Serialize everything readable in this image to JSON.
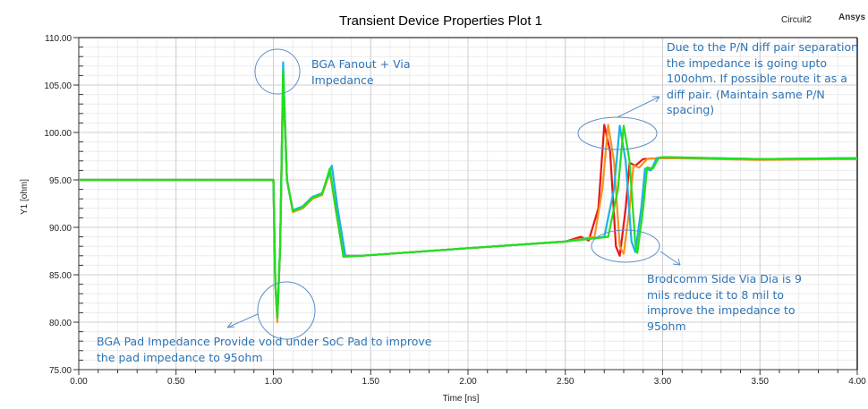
{
  "header": {
    "title": "Transient Device Properties Plot 1",
    "circuit": "Circuit2",
    "vendor": "Ansys"
  },
  "annotations": {
    "fanout": "BGA Fanout + Via\nImpedance",
    "diff_pair": "Due to the P/N diff pair separation\nthe impedance is going upto\n100ohm. If possible route it as a\ndiff pair. (Maintain same P/N\nspacing)",
    "pad": "BGA Pad Impedance Provide void under SoC Pad to improve\nthe pad impedance to 95ohm",
    "via": "Brodcomm Side Via Dia is 9\nmils reduce it to 8 mil to\nimprove the impedance to\n95ohm"
  },
  "chart_data": {
    "type": "line",
    "title": "Transient Device Properties Plot 1",
    "xlabel": "Time [ns]",
    "ylabel": "Y1 [ohm]",
    "xlim": [
      0,
      4
    ],
    "ylim": [
      75,
      110
    ],
    "x_ticks": [
      "0.00",
      "0.50",
      "1.00",
      "1.50",
      "2.00",
      "2.50",
      "3.00",
      "3.50",
      "4.00"
    ],
    "y_ticks": [
      "110.00",
      "105.00",
      "100.00",
      "95.00",
      "90.00",
      "85.00",
      "80.00",
      "75.00"
    ],
    "grid": true,
    "legend": "none",
    "series": [
      {
        "name": "trace-red",
        "color": "#e8141c",
        "points": [
          [
            0,
            95
          ],
          [
            1.0,
            95
          ],
          [
            1.01,
            84
          ],
          [
            1.02,
            80.5
          ],
          [
            1.035,
            88
          ],
          [
            1.05,
            105.5
          ],
          [
            1.07,
            95
          ],
          [
            1.1,
            91.7
          ],
          [
            1.15,
            92
          ],
          [
            1.2,
            93
          ],
          [
            1.25,
            93.5
          ],
          [
            1.29,
            96
          ],
          [
            1.32,
            92
          ],
          [
            1.36,
            87
          ],
          [
            1.45,
            87
          ],
          [
            2.0,
            87.8
          ],
          [
            2.5,
            88.5
          ],
          [
            2.58,
            89
          ],
          [
            2.62,
            88.6
          ],
          [
            2.67,
            92
          ],
          [
            2.7,
            100.8
          ],
          [
            2.73,
            98
          ],
          [
            2.76,
            88
          ],
          [
            2.78,
            87
          ],
          [
            2.81,
            92
          ],
          [
            2.83,
            96.8
          ],
          [
            2.86,
            96.5
          ],
          [
            2.9,
            97.2
          ],
          [
            3.0,
            97.3
          ],
          [
            3.5,
            97.2
          ],
          [
            4.0,
            97.2
          ]
        ]
      },
      {
        "name": "trace-orange",
        "color": "#f7941d",
        "points": [
          [
            0,
            95
          ],
          [
            1.0,
            95
          ],
          [
            1.01,
            84
          ],
          [
            1.02,
            80
          ],
          [
            1.035,
            88
          ],
          [
            1.05,
            106
          ],
          [
            1.07,
            95
          ],
          [
            1.1,
            91.6
          ],
          [
            1.15,
            92
          ],
          [
            1.2,
            93
          ],
          [
            1.25,
            93.4
          ],
          [
            1.29,
            95.8
          ],
          [
            1.32,
            92
          ],
          [
            1.36,
            87
          ],
          [
            1.45,
            87
          ],
          [
            2.0,
            87.8
          ],
          [
            2.5,
            88.5
          ],
          [
            2.65,
            89
          ],
          [
            2.69,
            94
          ],
          [
            2.72,
            100.8
          ],
          [
            2.75,
            97
          ],
          [
            2.78,
            88
          ],
          [
            2.8,
            87.2
          ],
          [
            2.83,
            92
          ],
          [
            2.85,
            96.5
          ],
          [
            2.88,
            96.3
          ],
          [
            2.92,
            97.2
          ],
          [
            3.0,
            97.3
          ],
          [
            3.5,
            97.1
          ],
          [
            4.0,
            97.2
          ]
        ]
      },
      {
        "name": "trace-cyan",
        "color": "#1ab2e8",
        "points": [
          [
            0,
            95
          ],
          [
            1.0,
            95
          ],
          [
            1.01,
            84
          ],
          [
            1.02,
            80.5
          ],
          [
            1.035,
            88
          ],
          [
            1.05,
            107.4
          ],
          [
            1.07,
            95
          ],
          [
            1.1,
            91.8
          ],
          [
            1.15,
            92.2
          ],
          [
            1.2,
            93.2
          ],
          [
            1.25,
            93.6
          ],
          [
            1.3,
            96.5
          ],
          [
            1.33,
            92
          ],
          [
            1.37,
            87
          ],
          [
            1.45,
            87
          ],
          [
            2.0,
            87.8
          ],
          [
            2.5,
            88.5
          ],
          [
            2.7,
            89
          ],
          [
            2.75,
            94
          ],
          [
            2.78,
            100.7
          ],
          [
            2.81,
            97
          ],
          [
            2.84,
            88.5
          ],
          [
            2.86,
            87.4
          ],
          [
            2.89,
            92
          ],
          [
            2.91,
            96.2
          ],
          [
            2.94,
            96
          ],
          [
            2.97,
            97.3
          ],
          [
            3.0,
            97.4
          ],
          [
            3.5,
            97.2
          ],
          [
            4.0,
            97.3
          ]
        ]
      },
      {
        "name": "trace-green",
        "color": "#22e01a",
        "points": [
          [
            0,
            95
          ],
          [
            1.0,
            95
          ],
          [
            1.01,
            84
          ],
          [
            1.02,
            80.5
          ],
          [
            1.035,
            88
          ],
          [
            1.05,
            106.5
          ],
          [
            1.07,
            95
          ],
          [
            1.1,
            91.7
          ],
          [
            1.15,
            92.1
          ],
          [
            1.2,
            93.1
          ],
          [
            1.25,
            93.5
          ],
          [
            1.29,
            96.2
          ],
          [
            1.32,
            92
          ],
          [
            1.36,
            86.9
          ],
          [
            1.45,
            87
          ],
          [
            2.0,
            87.8
          ],
          [
            2.5,
            88.5
          ],
          [
            2.72,
            89
          ],
          [
            2.77,
            94
          ],
          [
            2.8,
            100.7
          ],
          [
            2.83,
            97
          ],
          [
            2.86,
            88.2
          ],
          [
            2.87,
            87.3
          ],
          [
            2.9,
            92
          ],
          [
            2.92,
            96.3
          ],
          [
            2.95,
            96.2
          ],
          [
            2.98,
            97.3
          ],
          [
            3.0,
            97.4
          ],
          [
            3.5,
            97.2
          ],
          [
            4.0,
            97.3
          ]
        ]
      }
    ]
  }
}
